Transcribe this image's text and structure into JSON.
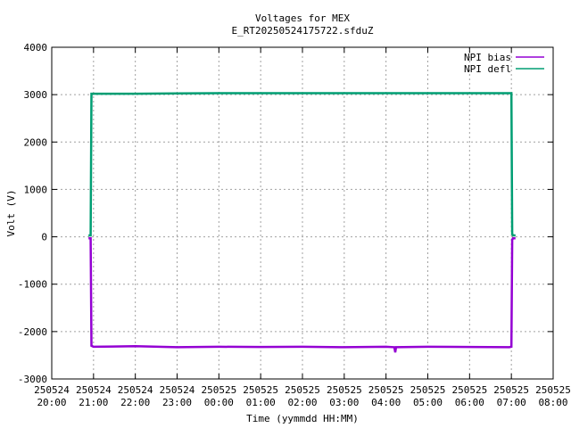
{
  "chart_data": {
    "type": "line",
    "title": "Voltages for MEX",
    "subtitle": "E_RT20250524175722.sfduZ",
    "xlabel": "Time (yymmdd HH:MM)",
    "ylabel": "Volt (V)",
    "ylim": [
      -3000,
      4000
    ],
    "yticks": [
      -3000,
      -2000,
      -1000,
      0,
      1000,
      2000,
      3000,
      4000
    ],
    "xlim_hours": [
      0,
      12
    ],
    "xticks": [
      {
        "hour": 0,
        "date": "250524",
        "time": "20:00"
      },
      {
        "hour": 1,
        "date": "250524",
        "time": "21:00"
      },
      {
        "hour": 2,
        "date": "250524",
        "time": "22:00"
      },
      {
        "hour": 3,
        "date": "250524",
        "time": "23:00"
      },
      {
        "hour": 4,
        "date": "250525",
        "time": "00:00"
      },
      {
        "hour": 5,
        "date": "250525",
        "time": "01:00"
      },
      {
        "hour": 6,
        "date": "250525",
        "time": "02:00"
      },
      {
        "hour": 7,
        "date": "250525",
        "time": "03:00"
      },
      {
        "hour": 8,
        "date": "250525",
        "time": "04:00"
      },
      {
        "hour": 9,
        "date": "250525",
        "time": "05:00"
      },
      {
        "hour": 10,
        "date": "250525",
        "time": "06:00"
      },
      {
        "hour": 11,
        "date": "250525",
        "time": "07:00"
      },
      {
        "hour": 12,
        "date": "250525",
        "time": "08:00"
      }
    ],
    "grid": true,
    "legend_position": "top-right",
    "series": [
      {
        "name": "NPI bias",
        "color": "#9400d3",
        "x_hours": [
          0.88,
          0.93,
          0.95,
          1.0,
          2.0,
          3.0,
          4.0,
          5.0,
          6.0,
          7.0,
          8.0,
          8.2,
          8.22,
          8.24,
          9.0,
          10.0,
          10.95,
          11.0,
          11.02,
          11.04,
          11.1
        ],
        "values": [
          -30,
          -30,
          -2300,
          -2320,
          -2310,
          -2330,
          -2320,
          -2325,
          -2320,
          -2330,
          -2320,
          -2330,
          -2440,
          -2330,
          -2320,
          -2325,
          -2330,
          -2320,
          -60,
          -30,
          -30
        ]
      },
      {
        "name": "NPI defl",
        "color": "#009e73",
        "x_hours": [
          0.88,
          0.93,
          0.95,
          1.0,
          2.0,
          3.0,
          4.0,
          5.0,
          6.0,
          7.0,
          8.0,
          9.0,
          10.0,
          10.95,
          11.0,
          11.02,
          11.04,
          11.1
        ],
        "values": [
          30,
          30,
          3020,
          3020,
          3020,
          3025,
          3030,
          3030,
          3030,
          3030,
          3030,
          3030,
          3030,
          3030,
          3030,
          60,
          30,
          30
        ]
      }
    ]
  }
}
